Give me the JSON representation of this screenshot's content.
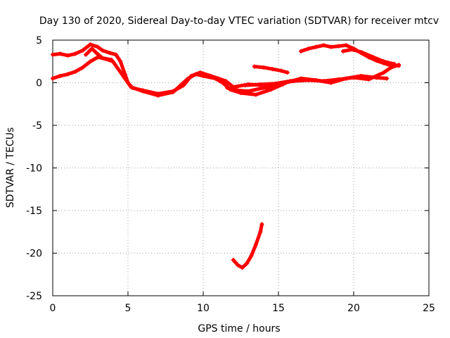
{
  "chart_data": {
    "type": "line",
    "title": "Day 130 of 2020, Sidereal Day-to-day VTEC variation (SDTVAR) for receiver mtcv",
    "xlabel": "GPS time / hours",
    "ylabel": "SDTVAR / TECUs",
    "xlim": [
      0,
      25
    ],
    "ylim": [
      -25,
      5
    ],
    "xticks": [
      0,
      5,
      10,
      15,
      20,
      25
    ],
    "yticks": [
      -25,
      -20,
      -15,
      -10,
      -5,
      0,
      5
    ],
    "grid": true,
    "legend": "none",
    "color": "#ff0000",
    "series": [
      {
        "name": "arc-1",
        "points": [
          [
            0.0,
            3.3
          ],
          [
            0.5,
            3.4
          ],
          [
            1.0,
            3.2
          ],
          [
            1.5,
            3.4
          ],
          [
            2.0,
            3.8
          ],
          [
            2.5,
            4.5
          ],
          [
            3.0,
            4.2
          ],
          [
            3.3,
            3.8
          ],
          [
            3.8,
            3.5
          ],
          [
            4.2,
            3.3
          ],
          [
            4.5,
            2.5
          ],
          [
            4.8,
            1.0
          ],
          [
            5.0,
            0.0
          ],
          [
            5.3,
            -0.6
          ],
          [
            6.0,
            -0.9
          ],
          [
            7.0,
            -1.3
          ],
          [
            8.0,
            -1.0
          ],
          [
            8.7,
            -0.3
          ],
          [
            9.2,
            0.8
          ],
          [
            9.8,
            1.2
          ],
          [
            10.5,
            0.8
          ],
          [
            11.0,
            0.5
          ],
          [
            11.5,
            0.2
          ],
          [
            12.0,
            -0.5
          ],
          [
            13.0,
            -0.2
          ],
          [
            14.0,
            -0.3
          ],
          [
            15.0,
            -0.1
          ],
          [
            16.0,
            0.2
          ],
          [
            17.0,
            0.3
          ],
          [
            18.0,
            0.2
          ],
          [
            19.0,
            0.4
          ],
          [
            20.0,
            0.6
          ],
          [
            21.0,
            0.4
          ],
          [
            22.0,
            1.2
          ],
          [
            22.5,
            1.8
          ],
          [
            23.0,
            2.1
          ]
        ]
      },
      {
        "name": "arc-2",
        "points": [
          [
            0.0,
            0.5
          ],
          [
            0.5,
            0.8
          ],
          [
            1.0,
            1.0
          ],
          [
            1.5,
            1.3
          ],
          [
            2.0,
            1.8
          ],
          [
            2.5,
            2.5
          ],
          [
            3.0,
            3.0
          ],
          [
            3.5,
            2.8
          ],
          [
            4.0,
            2.5
          ],
          [
            4.4,
            1.5
          ],
          [
            4.8,
            0.5
          ],
          [
            5.2,
            -0.5
          ],
          [
            6.0,
            -1.0
          ],
          [
            7.0,
            -1.5
          ],
          [
            8.0,
            -1.1
          ],
          [
            9.0,
            0.5
          ],
          [
            9.5,
            1.0
          ],
          [
            10.0,
            0.8
          ],
          [
            10.8,
            0.5
          ],
          [
            11.3,
            0.0
          ],
          [
            11.8,
            -0.8
          ],
          [
            12.5,
            -1.2
          ],
          [
            13.5,
            -1.4
          ],
          [
            14.5,
            -0.8
          ],
          [
            15.5,
            0.0
          ],
          [
            16.5,
            0.5
          ],
          [
            17.5,
            0.3
          ],
          [
            18.5,
            0.0
          ],
          [
            19.5,
            0.5
          ],
          [
            20.5,
            0.8
          ],
          [
            21.5,
            0.6
          ],
          [
            22.2,
            0.5
          ]
        ]
      },
      {
        "name": "arc-3",
        "points": [
          [
            2.2,
            3.3
          ],
          [
            2.6,
            4.0
          ],
          [
            2.9,
            3.5
          ],
          [
            3.3,
            2.9
          ],
          [
            3.9,
            2.7
          ]
        ]
      },
      {
        "name": "arc-4",
        "points": [
          [
            11.6,
            -0.6
          ],
          [
            12.3,
            -0.9
          ],
          [
            13.0,
            -1.0
          ],
          [
            14.0,
            -0.6
          ],
          [
            14.8,
            -0.5
          ],
          [
            15.3,
            -0.2
          ]
        ]
      },
      {
        "name": "arc-5",
        "points": [
          [
            12.8,
            -0.3
          ],
          [
            13.8,
            -0.2
          ],
          [
            14.8,
            -0.1
          ],
          [
            15.8,
            0.2
          ],
          [
            16.6,
            0.4
          ]
        ]
      },
      {
        "name": "arc-6",
        "points": [
          [
            13.4,
            1.9
          ],
          [
            14.0,
            1.8
          ],
          [
            14.6,
            1.6
          ],
          [
            15.2,
            1.4
          ],
          [
            15.6,
            1.2
          ]
        ]
      },
      {
        "name": "arc-7",
        "points": [
          [
            16.5,
            3.7
          ],
          [
            17.0,
            4.0
          ],
          [
            17.5,
            4.2
          ],
          [
            18.0,
            4.4
          ],
          [
            18.5,
            4.2
          ],
          [
            19.0,
            4.3
          ],
          [
            19.5,
            4.4
          ],
          [
            20.0,
            4.0
          ],
          [
            20.5,
            3.5
          ],
          [
            21.0,
            3.0
          ],
          [
            21.5,
            2.6
          ],
          [
            22.0,
            2.3
          ],
          [
            22.5,
            2.0
          ],
          [
            23.0,
            2.0
          ]
        ]
      },
      {
        "name": "arc-8",
        "points": [
          [
            19.3,
            3.7
          ],
          [
            19.9,
            3.9
          ],
          [
            20.5,
            3.6
          ],
          [
            21.3,
            3.0
          ],
          [
            22.0,
            2.5
          ],
          [
            22.7,
            2.2
          ]
        ]
      },
      {
        "name": "arc-9",
        "points": [
          [
            12.0,
            -20.8
          ],
          [
            12.3,
            -21.4
          ],
          [
            12.6,
            -21.7
          ],
          [
            12.9,
            -21.2
          ],
          [
            13.2,
            -20.3
          ],
          [
            13.5,
            -19.0
          ],
          [
            13.8,
            -17.5
          ],
          [
            13.9,
            -16.6
          ]
        ]
      }
    ]
  }
}
